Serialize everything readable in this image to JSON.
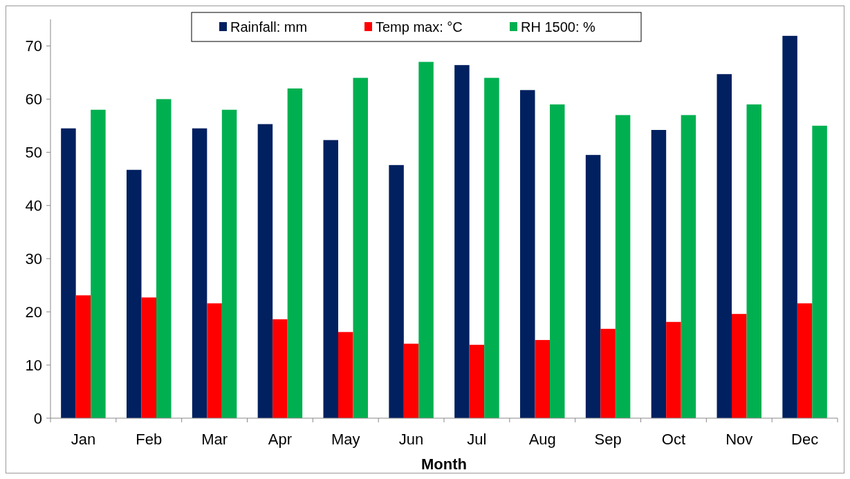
{
  "chart_data": {
    "type": "bar",
    "xlabel": "Month",
    "categories": [
      "Jan",
      "Feb",
      "Mar",
      "Apr",
      "May",
      "Jun",
      "Jul",
      "Aug",
      "Sep",
      "Oct",
      "Nov",
      "Dec"
    ],
    "series": [
      {
        "name": "Rainfall: mm",
        "color": "#002060",
        "values": [
          54.5,
          46.7,
          54.5,
          55.3,
          52.3,
          47.6,
          66.4,
          61.7,
          49.5,
          54.2,
          64.7,
          71.9
        ]
      },
      {
        "name": "Temp max: °C",
        "color": "#ff0000",
        "values": [
          23.1,
          22.7,
          21.6,
          18.6,
          16.2,
          14,
          13.8,
          14.7,
          16.8,
          18.1,
          19.6,
          21.6
        ]
      },
      {
        "name": "RH 1500: %",
        "color": "#00b050",
        "values": [
          58,
          60,
          58,
          62,
          64,
          67,
          64,
          59,
          57,
          57,
          59,
          55
        ]
      }
    ],
    "ylim": [
      0,
      75
    ],
    "yticks": [
      0,
      10,
      20,
      30,
      40,
      50,
      60,
      70
    ],
    "grid": false,
    "legend": "top"
  }
}
